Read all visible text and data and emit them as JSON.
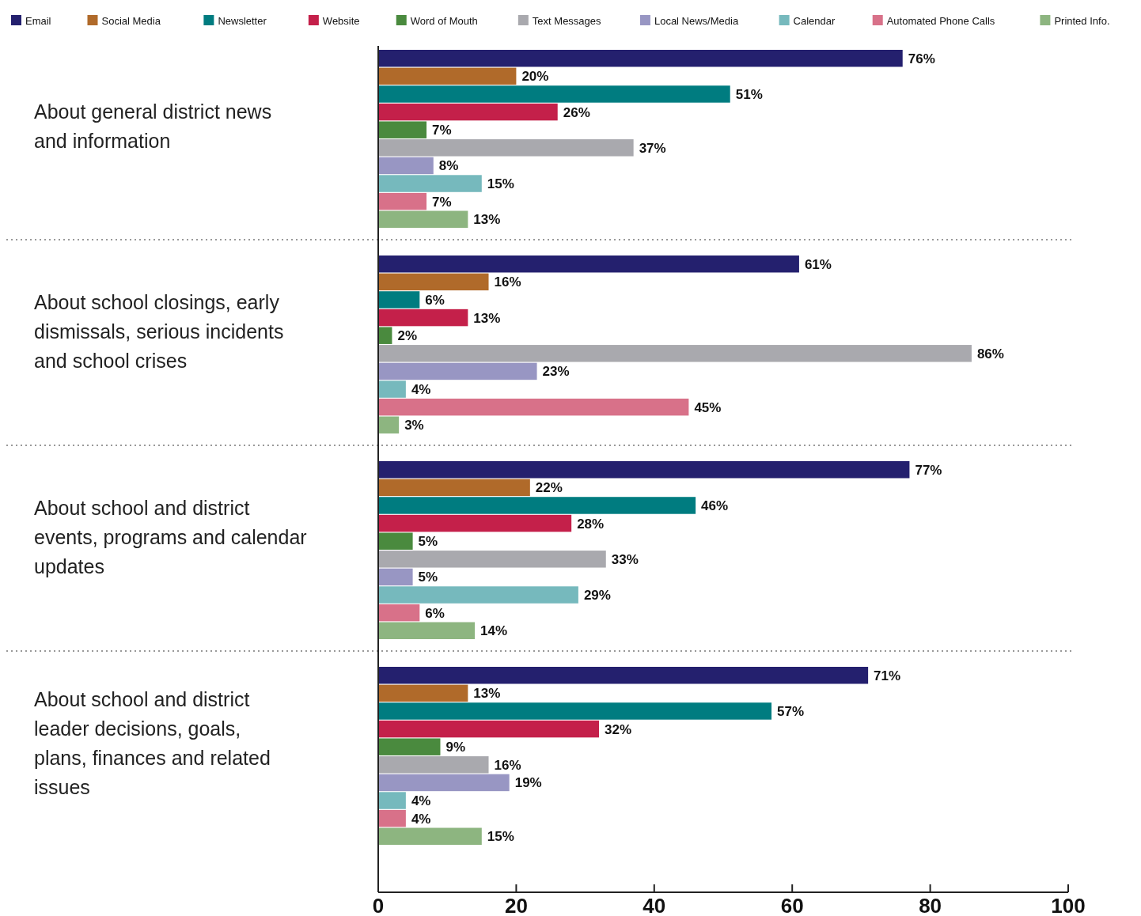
{
  "chart_data": {
    "type": "bar",
    "orientation": "horizontal",
    "legend": "top",
    "grid": false,
    "xlim": [
      0,
      100
    ],
    "xticks": [
      0,
      20,
      40,
      60,
      80,
      100
    ],
    "categories": [
      "About general district news and information",
      "About school closings, early dismissals, serious incidents and school crises",
      "About school and district events, programs and calendar updates",
      "About school and district leader decisions, goals, plans, finances and related issues"
    ],
    "series": [
      {
        "name": "Email",
        "color": "#24206e",
        "values": [
          76,
          61,
          77,
          71
        ],
        "value_labels": [
          "76%",
          "61%",
          "77%",
          "71%"
        ]
      },
      {
        "name": "Social Media",
        "color": "#b06a2a",
        "values": [
          20,
          16,
          22,
          13
        ],
        "value_labels": [
          "20%",
          "16%",
          "22%",
          "13%"
        ]
      },
      {
        "name": "Newsletter",
        "color": "#007c80",
        "values": [
          51,
          6,
          46,
          57
        ],
        "value_labels": [
          "51%",
          "6%",
          "46%",
          "57%"
        ]
      },
      {
        "name": "Website",
        "color": "#c4204a",
        "values": [
          26,
          13,
          28,
          32
        ],
        "value_labels": [
          "26%",
          "13%",
          "28%",
          "32%"
        ]
      },
      {
        "name": "Word of Mouth",
        "color": "#4a8a3e",
        "values": [
          7,
          2,
          5,
          9
        ],
        "value_labels": [
          "7%",
          "2%",
          "5%",
          "9%"
        ]
      },
      {
        "name": "Text Messages",
        "color": "#a9a9ae",
        "values": [
          37,
          86,
          33,
          16
        ],
        "value_labels": [
          "37%",
          "86%",
          "33%",
          "16%"
        ]
      },
      {
        "name": "Local News/Media",
        "color": "#9896c3",
        "values": [
          8,
          23,
          5,
          19
        ],
        "value_labels": [
          "8%",
          "23%",
          "5%",
          "19%"
        ]
      },
      {
        "name": "Calendar",
        "color": "#76b9bd",
        "values": [
          15,
          4,
          29,
          4
        ],
        "value_labels": [
          "15%",
          "4%",
          "29%",
          "4%"
        ]
      },
      {
        "name": "Automated Phone Calls",
        "color": "#d87189",
        "values": [
          7,
          45,
          6,
          4
        ],
        "value_labels": [
          "7%",
          "45%",
          "6%",
          "4%"
        ]
      },
      {
        "name": "Printed Info.",
        "color": "#8db580",
        "values": [
          13,
          3,
          14,
          15
        ],
        "value_labels": [
          "13%",
          "3%",
          "14%",
          "15%"
        ]
      }
    ]
  }
}
